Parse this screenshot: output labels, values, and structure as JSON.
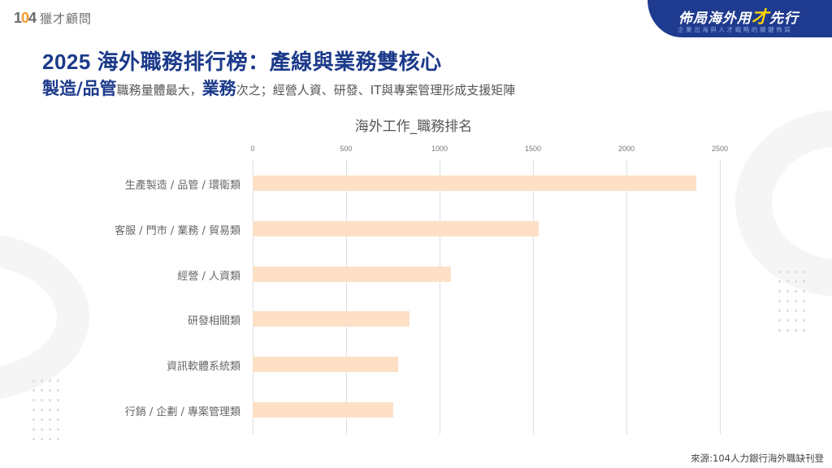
{
  "logo": {
    "number_prefix": "1",
    "number_o": "0",
    "number_suffix": "4",
    "text": "獵才顧問"
  },
  "banner": {
    "title_part1": "佈局海外用",
    "title_highlight": "才",
    "title_part2": "先行",
    "subtitle": "企業出海與人才戰略的關鍵佈局"
  },
  "heading": {
    "title": "2025 海外職務排行榜：產線與業務雙核心",
    "subtitle_em1": "製造/品管",
    "subtitle_text1": "職務量體最大，",
    "subtitle_em2": "業務",
    "subtitle_text2": "次之；經營人資、研發、IT與專案管理形成支援矩陣"
  },
  "colors": {
    "brand_blue": "#1c3a8a",
    "banner_blue": "#1f3b8f",
    "bar_fill": "#fde0c6",
    "logo_orange": "#f29a2e",
    "banner_highlight": "#ffd400"
  },
  "chart_data": {
    "type": "bar",
    "orientation": "horizontal",
    "title": "海外工作_職務排名",
    "xlabel": "",
    "ylabel": "",
    "xlim": [
      0,
      2500
    ],
    "x_ticks": [
      "0",
      "500",
      "1000",
      "1500",
      "2000",
      "2500"
    ],
    "grid": true,
    "legend": null,
    "categories": [
      "生產製造 / 品管 / 環衛類",
      "客服 / 門市 / 業務 / 貿易類",
      "經營 / 人資類",
      "研發相關類",
      "資訊軟體系統類",
      "行銷 / 企劃 / 專案管理類"
    ],
    "values": [
      2375,
      1530,
      1060,
      840,
      780,
      750
    ]
  },
  "footer": {
    "source": "來源:104人力銀行海外職缺刊登"
  }
}
